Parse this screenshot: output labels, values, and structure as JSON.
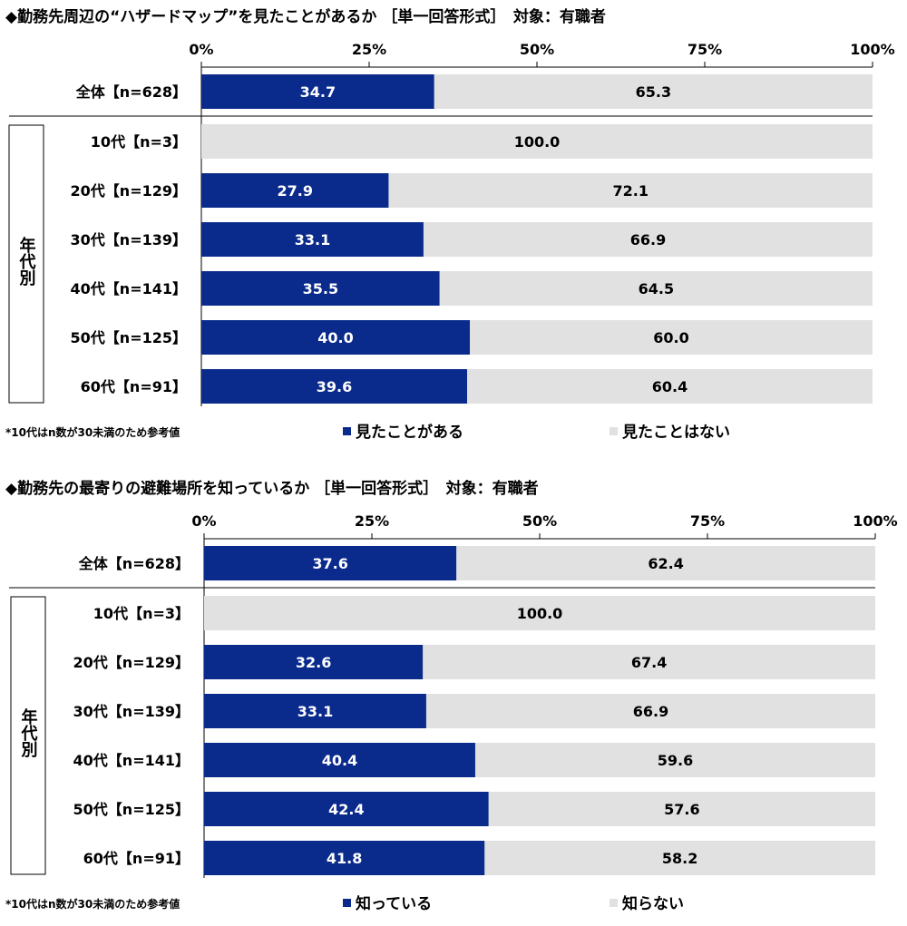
{
  "chart_data": [
    {
      "type": "bar",
      "stacked": true,
      "orientation": "horizontal",
      "title": "◆勤務先周辺の“ハザードマップ”を見たことがあるか ［単一回答形式］　対象：有職者",
      "xlim": [
        0,
        100
      ],
      "x_ticks": [
        "0%",
        "25%",
        "50%",
        "75%",
        "100%"
      ],
      "categories": [
        "全体【n=628】",
        "10代【n=3】",
        "20代【n=129】",
        "30代【n=139】",
        "40代【n=141】",
        "50代【n=125】",
        "60代【n=91】"
      ],
      "group_label": "年代別",
      "series": [
        {
          "name": "見たことがある",
          "color": "#0a2a8c",
          "values": [
            34.7,
            0,
            27.9,
            33.1,
            35.5,
            40.0,
            39.6
          ]
        },
        {
          "name": "見たことはない",
          "color": "#e1e1e1",
          "values": [
            65.3,
            100.0,
            72.1,
            66.9,
            64.5,
            60.0,
            60.4
          ]
        }
      ],
      "footnote": "*10代はn数が30未満のため参考値",
      "legend": "bottom"
    },
    {
      "type": "bar",
      "stacked": true,
      "orientation": "horizontal",
      "title": "◆勤務先の最寄りの避難場所を知っているか ［単一回答形式］　対象：有職者",
      "xlim": [
        0,
        100
      ],
      "x_ticks": [
        "0%",
        "25%",
        "50%",
        "75%",
        "100%"
      ],
      "categories": [
        "全体【n=628】",
        "10代【n=3】",
        "20代【n=129】",
        "30代【n=139】",
        "40代【n=141】",
        "50代【n=125】",
        "60代【n=91】"
      ],
      "group_label": "年代別",
      "series": [
        {
          "name": "知っている",
          "color": "#0a2a8c",
          "values": [
            37.6,
            0,
            32.6,
            33.1,
            40.4,
            42.4,
            41.8
          ]
        },
        {
          "name": "知らない",
          "color": "#e1e1e1",
          "values": [
            62.4,
            100.0,
            67.4,
            66.9,
            59.6,
            57.6,
            58.2
          ]
        }
      ],
      "footnote": "*10代はn数が30未満のため参考値",
      "legend": "bottom"
    }
  ]
}
